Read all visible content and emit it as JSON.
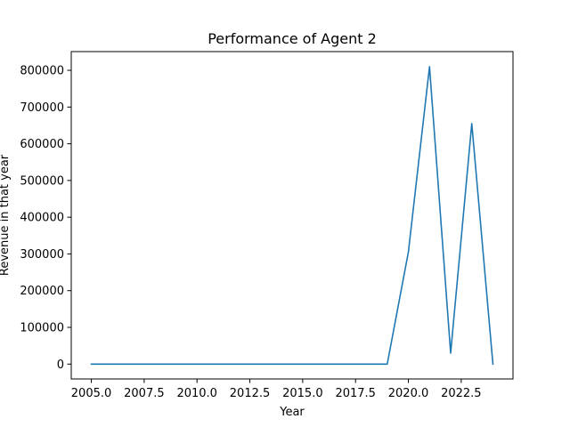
{
  "chart_data": {
    "type": "line",
    "title": "Performance of Agent 2",
    "xlabel": "Year",
    "ylabel": "Revenue in that year",
    "xlim": [
      2004.05,
      2024.95
    ],
    "ylim": [
      -40500,
      851000
    ],
    "xticks": [
      2005.0,
      2007.5,
      2010.0,
      2012.5,
      2015.0,
      2017.5,
      2020.0,
      2022.5
    ],
    "xtick_labels": [
      "2005.0",
      "2007.5",
      "2010.0",
      "2012.5",
      "2015.0",
      "2017.5",
      "2020.0",
      "2022.5"
    ],
    "yticks": [
      0,
      100000,
      200000,
      300000,
      400000,
      500000,
      600000,
      700000,
      800000
    ],
    "ytick_labels": [
      "0",
      "100000",
      "200000",
      "300000",
      "400000",
      "500000",
      "600000",
      "700000",
      "800000"
    ],
    "grid": false,
    "series": [
      {
        "color": "#1f77b4",
        "x": [
          2005,
          2006,
          2007,
          2008,
          2009,
          2010,
          2011,
          2012,
          2013,
          2014,
          2015,
          2016,
          2017,
          2018,
          2019,
          2020,
          2021,
          2022,
          2023,
          2024
        ],
        "values": [
          0,
          0,
          0,
          0,
          0,
          0,
          0,
          0,
          0,
          0,
          0,
          0,
          0,
          0,
          0,
          305000,
          810000,
          30000,
          655000,
          0
        ]
      }
    ]
  }
}
